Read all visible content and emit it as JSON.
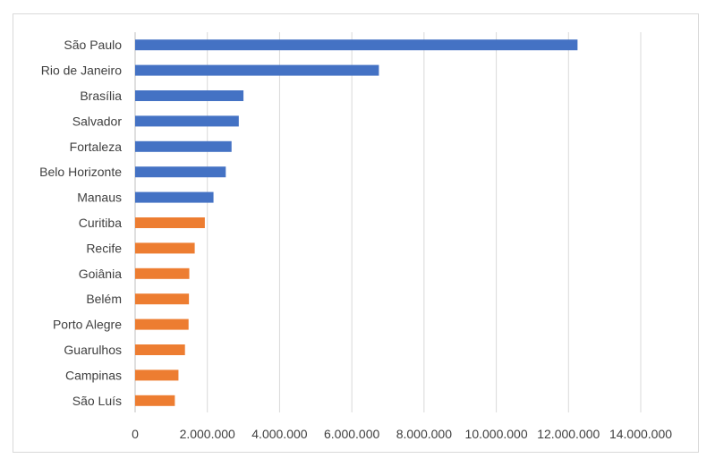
{
  "chart_data": {
    "type": "bar",
    "orientation": "horizontal",
    "title": "",
    "xlabel": "",
    "ylabel": "",
    "categories": [
      "São Paulo",
      "Rio de Janeiro",
      "Brasília",
      "Salvador",
      "Fortaleza",
      "Belo Horizonte",
      "Manaus",
      "Curitiba",
      "Recife",
      "Goiânia",
      "Belém",
      "Porto Alegre",
      "Guarulhos",
      "Campinas",
      "São Luís"
    ],
    "values": [
      12250000,
      6750000,
      3000000,
      2870000,
      2670000,
      2510000,
      2170000,
      1930000,
      1650000,
      1500000,
      1490000,
      1480000,
      1380000,
      1200000,
      1100000
    ],
    "bar_colors": [
      "#4472c4",
      "#4472c4",
      "#4472c4",
      "#4472c4",
      "#4472c4",
      "#4472c4",
      "#4472c4",
      "#ed7d31",
      "#ed7d31",
      "#ed7d31",
      "#ed7d31",
      "#ed7d31",
      "#ed7d31",
      "#ed7d31",
      "#ed7d31"
    ],
    "xlim": [
      0,
      14000000
    ],
    "x_ticks": [
      0,
      2000000,
      4000000,
      6000000,
      8000000,
      10000000,
      12000000,
      14000000
    ],
    "x_tick_labels": [
      "0",
      "2.000.000",
      "4.000.000",
      "6.000.000",
      "8.000.000",
      "10.000.000",
      "12.000.000",
      "14.000.000"
    ],
    "grid": true,
    "legend": "none"
  },
  "colors": {
    "gridline": "#d9d9d9",
    "axis": "#bfbfbf",
    "text": "#404040"
  }
}
